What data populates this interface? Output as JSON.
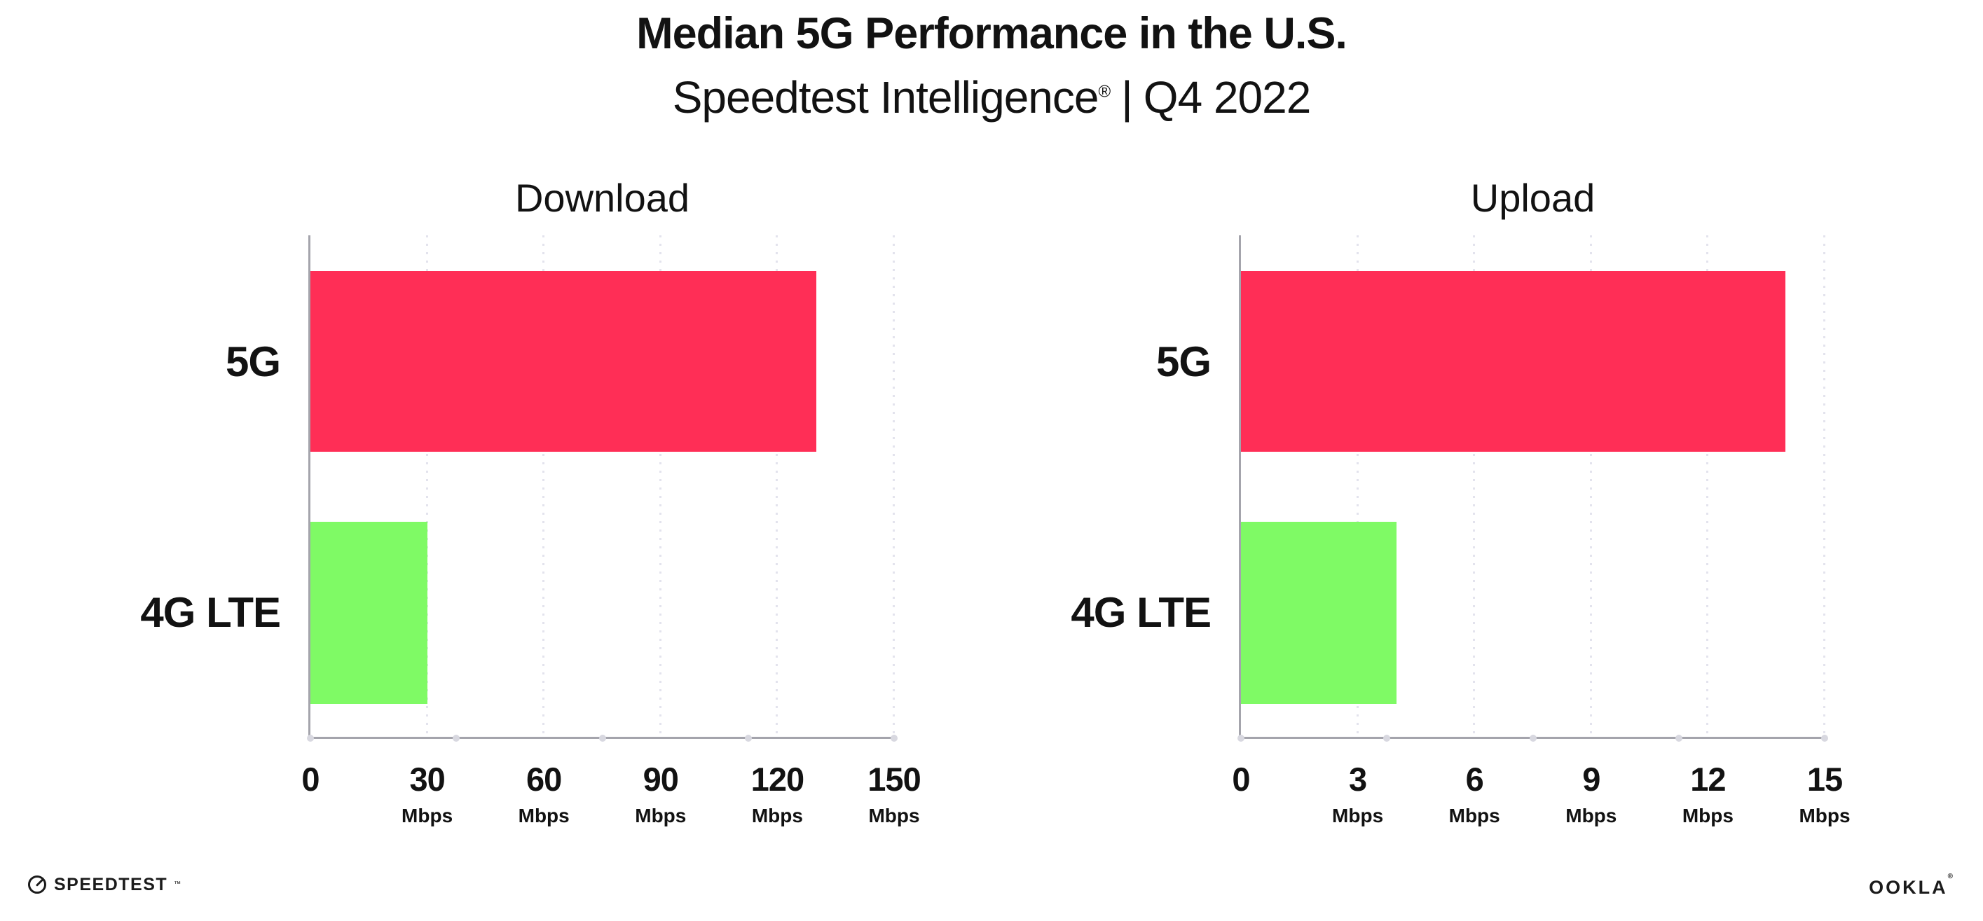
{
  "header": {
    "title": "Median 5G Performance in the U.S.",
    "subtitle": {
      "brand": "Speedtest Intelligence",
      "registered_mark": "®",
      "separator": "|",
      "period": "Q4 2022"
    }
  },
  "chart_data": [
    {
      "type": "bar",
      "orientation": "horizontal",
      "title": "Download",
      "categories": [
        "5G",
        "4G LTE"
      ],
      "values": [
        130,
        30
      ],
      "unit": "Mbps",
      "xlim": [
        0,
        150
      ],
      "xticks": [
        0,
        30,
        60,
        90,
        120,
        150
      ],
      "bar_colors": [
        "#FF2E56",
        "#7FFA65"
      ],
      "grid": "vertical dotted gridlines at each tick",
      "legend_position": "none"
    },
    {
      "type": "bar",
      "orientation": "horizontal",
      "title": "Upload",
      "categories": [
        "5G",
        "4G LTE"
      ],
      "values": [
        14,
        4
      ],
      "unit": "Mbps",
      "xlim": [
        0,
        15
      ],
      "xticks": [
        0,
        3,
        6,
        9,
        12,
        15
      ],
      "bar_colors": [
        "#FF2E56",
        "#7FFA65"
      ],
      "grid": "vertical dotted gridlines at each tick",
      "legend_position": "none"
    }
  ],
  "footer": {
    "speedtest_wordmark": "SPEEDTEST",
    "speedtest_trademark": "™",
    "speedtest_icon": "gauge-icon",
    "ookla_wordmark": "OOKLA",
    "ookla_registered": "®"
  },
  "colors": {
    "background": "#FFFFFF",
    "bar_5g": "#FF2E56",
    "bar_4g_lte": "#7FFA65",
    "axis": "#A4A4AC",
    "gridline": "#E3E3ED",
    "text": "#121212"
  }
}
